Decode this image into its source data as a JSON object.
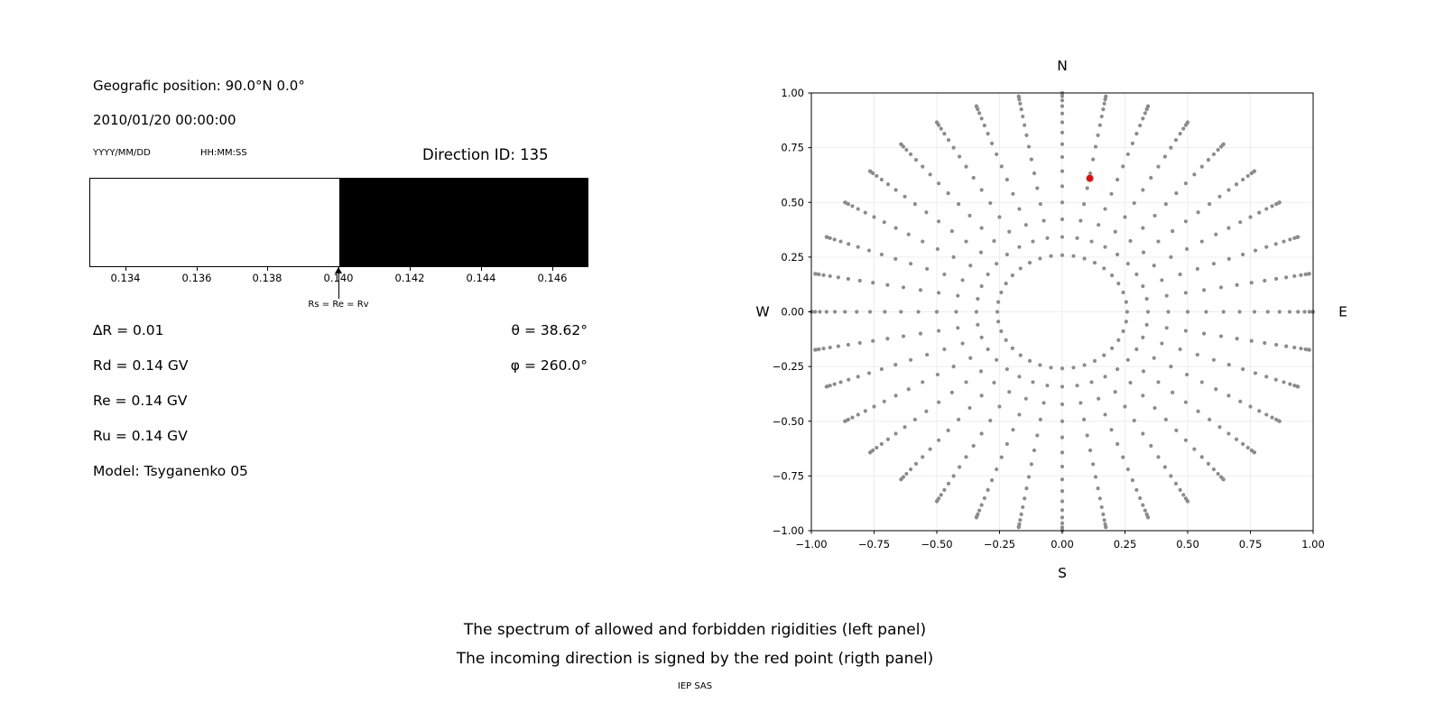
{
  "left_panel": {
    "geographic_position": "Geografic position: 90.0°N 0.0°",
    "datetime": "2010/01/20 00:00:00",
    "date_format_label": "YYYY/MM/DD",
    "time_format_label": "HH:MM:SS",
    "direction_id": "Direction ID: 135",
    "delta_r": "∆R = 0.01",
    "rd": "Rd = 0.14 GV",
    "re": "Re = 0.14 GV",
    "ru": "Ru = 0.14 GV",
    "model": "Model: Tsyganenko 05",
    "theta": "θ = 38.62°",
    "phi": "φ = 260.0°"
  },
  "captions": {
    "line1": "The spectrum of allowed and forbidden rigidities (left panel)",
    "line2": "The incoming direction is signed by the red point (rigth panel)",
    "credit": "IEP SAS"
  },
  "chart_data": [
    {
      "type": "area",
      "title": "Rigidity spectrum: allowed (white) and forbidden (black)",
      "xlim": [
        0.133,
        0.147
      ],
      "x_ticks": [
        0.134,
        0.136,
        0.138,
        0.14,
        0.142,
        0.144,
        0.146
      ],
      "x_tick_labels": [
        "0.134",
        "0.136",
        "0.138",
        "0.140",
        "0.142",
        "0.144",
        "0.146"
      ],
      "regions": [
        {
          "name": "allowed",
          "from": 0.133,
          "to": 0.14,
          "color": "#ffffff"
        },
        {
          "name": "forbidden",
          "from": 0.14,
          "to": 0.147,
          "color": "#000000"
        }
      ],
      "marker": {
        "x": 0.14,
        "label": "Rs = Re = Rv"
      }
    },
    {
      "type": "scatter",
      "title": "Incoming direction map (red point = incoming direction)",
      "xlim": [
        -1.0,
        1.0
      ],
      "ylim": [
        -1.0,
        1.0
      ],
      "x_ticks": [
        -1.0,
        -0.75,
        -0.5,
        -0.25,
        0.0,
        0.25,
        0.5,
        0.75,
        1.0
      ],
      "x_tick_labels": [
        "−1.00",
        "−0.75",
        "−0.50",
        "−0.25",
        "0.00",
        "0.25",
        "0.50",
        "0.75",
        "1.00"
      ],
      "y_ticks": [
        1.0,
        0.75,
        0.5,
        0.25,
        0.0,
        -0.25,
        -0.5,
        -0.75,
        -1.0
      ],
      "y_tick_labels": [
        "1.00",
        "0.75",
        "0.50",
        "0.25",
        "0.00",
        "−0.25",
        "−0.50",
        "−0.75",
        "−1.00"
      ],
      "compass": {
        "north": "N",
        "south": "S",
        "west": "W",
        "east": "E"
      },
      "grid_color": "#ededed",
      "grid_points": {
        "azimuth_start_deg": 0,
        "azimuth_step_deg": 10,
        "azimuth_count": 36,
        "zenith_start_deg": 15,
        "zenith_end_deg": 90,
        "zenith_step_deg": 5,
        "radius_rule": "sin(zenith)",
        "dot_color": "#8c8c8c"
      },
      "red_point": {
        "x": 0.11,
        "y": 0.61,
        "color": "#e01010"
      }
    }
  ]
}
